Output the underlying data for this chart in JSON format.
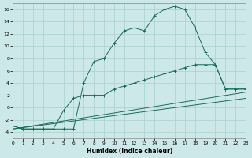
{
  "xlabel": "Humidex (Indice chaleur)",
  "bg_color": "#cce8e8",
  "grid_color": "#aacfcf",
  "line_color": "#1a6b5a",
  "xlim": [
    0,
    23
  ],
  "ylim": [
    -5,
    17
  ],
  "xticks": [
    0,
    1,
    2,
    3,
    4,
    5,
    6,
    7,
    8,
    9,
    10,
    11,
    12,
    13,
    14,
    15,
    16,
    17,
    18,
    19,
    20,
    21,
    22,
    23
  ],
  "yticks": [
    -4,
    -2,
    0,
    2,
    4,
    6,
    8,
    10,
    12,
    14,
    16
  ],
  "curve_upper_x": [
    0,
    1,
    2,
    3,
    4,
    5,
    6,
    7,
    8,
    9,
    10,
    11,
    12,
    13,
    14,
    15,
    16,
    17,
    18,
    19,
    20,
    21,
    22,
    23
  ],
  "curve_upper_y": [
    -3,
    -3.5,
    -3.5,
    -3.5,
    -3.5,
    -3.5,
    -3.5,
    4,
    7.5,
    8,
    10.5,
    12.5,
    13,
    12.5,
    15,
    16,
    16.5,
    16,
    13,
    9,
    7,
    3,
    3,
    3
  ],
  "curve_lower_x": [
    0,
    1,
    2,
    3,
    4,
    5,
    6,
    7,
    8,
    9,
    10,
    11,
    12,
    13,
    14,
    15,
    16,
    17,
    18,
    19,
    20,
    21,
    22,
    23
  ],
  "curve_lower_y": [
    -3,
    -3.5,
    -3.5,
    -3.5,
    -3.5,
    -0.5,
    1.5,
    2,
    2,
    2,
    3,
    3.5,
    4,
    4.5,
    5,
    5.5,
    6,
    6.5,
    7,
    7,
    7,
    3,
    3,
    3
  ],
  "line1_x": [
    0,
    23
  ],
  "line1_y": [
    -3.5,
    2.5
  ],
  "line2_x": [
    0,
    23
  ],
  "line2_y": [
    -3.5,
    1.5
  ]
}
